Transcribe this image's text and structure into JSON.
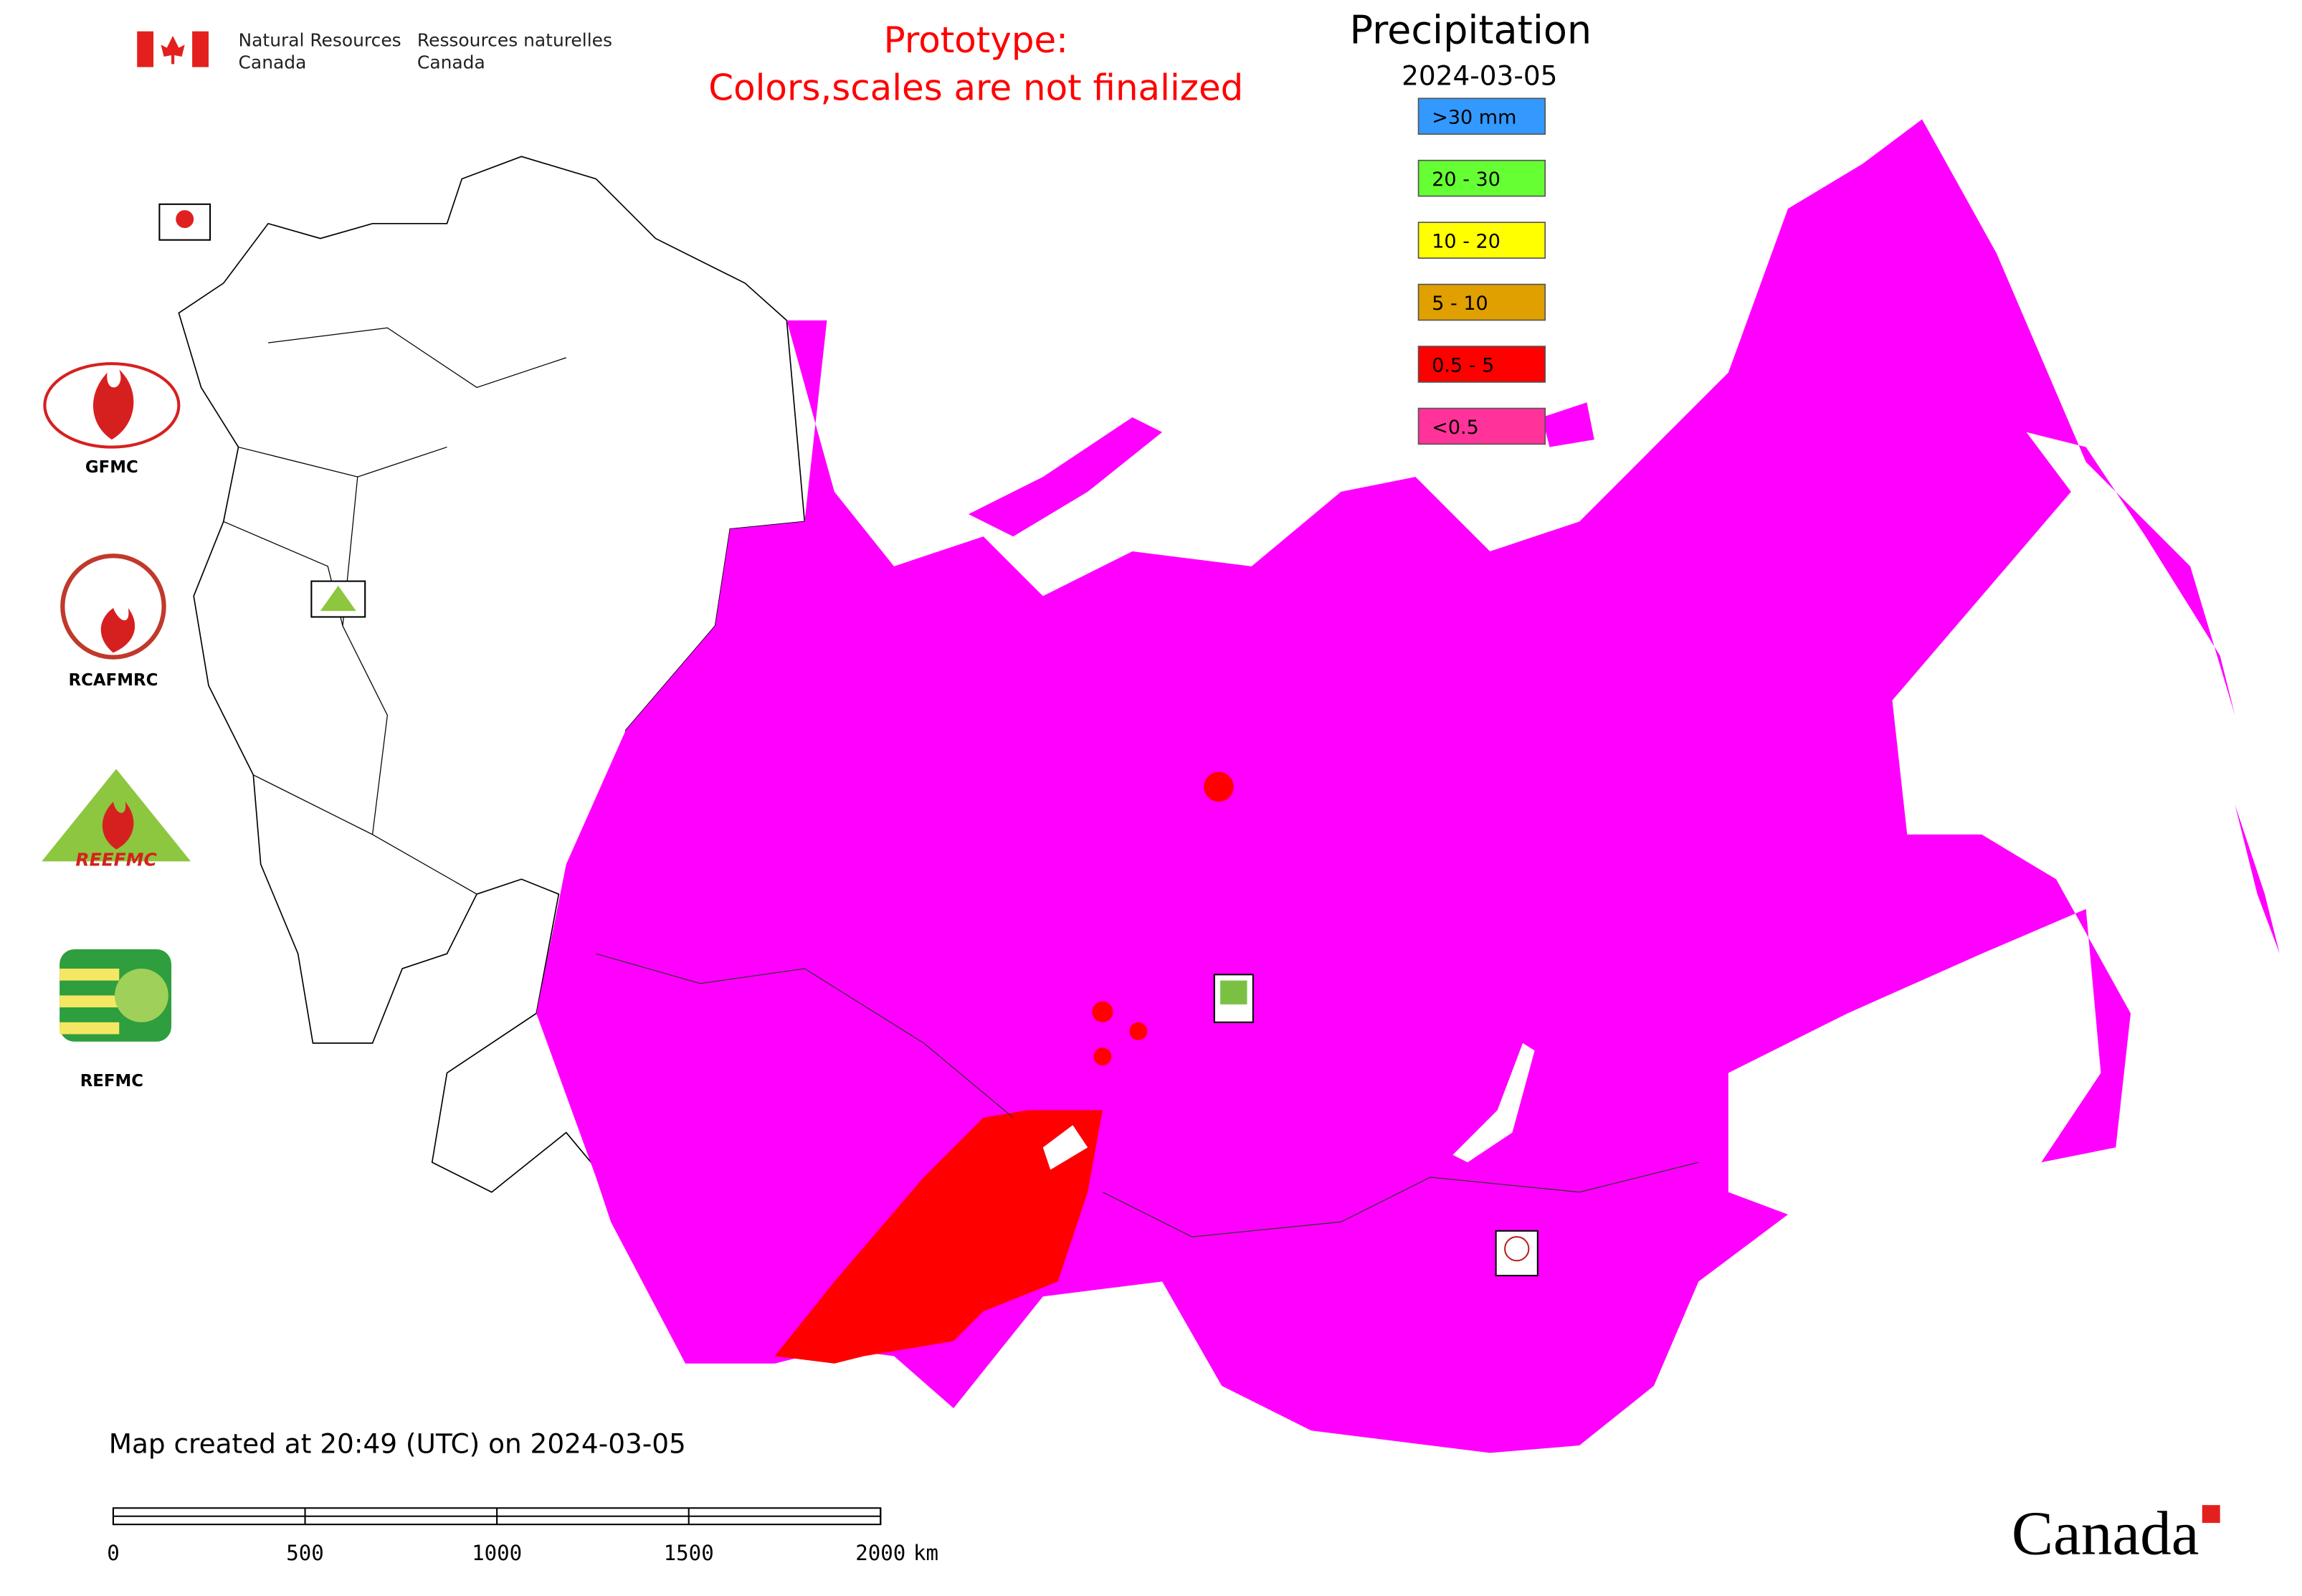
{
  "header": {
    "department_en": "Natural Resources",
    "country_en": "Canada",
    "department_fr": "Ressources naturelles",
    "country_fr": "Canada"
  },
  "notice": {
    "line1": "Prototype:",
    "line2": "Colors,scales are not finalized"
  },
  "legend": {
    "title": "Precipitation",
    "date": "2024-03-05",
    "items": [
      {
        "label": ">30 mm",
        "color": "#3399ff"
      },
      {
        "label": "20 - 30",
        "color": "#66ff33"
      },
      {
        "label": "10 - 20",
        "color": "#ffff00"
      },
      {
        "label": "5 - 10",
        "color": "#e0a000"
      },
      {
        "label": "0.5 - 5",
        "color": "#ff0000"
      },
      {
        "label": "<0.5",
        "color": "#ff3399"
      }
    ]
  },
  "logos": {
    "gfmc": "GFMC",
    "rcafmrc": "RCAFMRC",
    "reefmc": "REEFMC",
    "refmc": "REFMC"
  },
  "footer": "Map created at 20:49 (UTC) on 2024-03-05",
  "scale_bar": {
    "ticks": [
      0,
      500,
      1000,
      1500,
      2000
    ],
    "unit": "km"
  },
  "wordmark": "Canada"
}
